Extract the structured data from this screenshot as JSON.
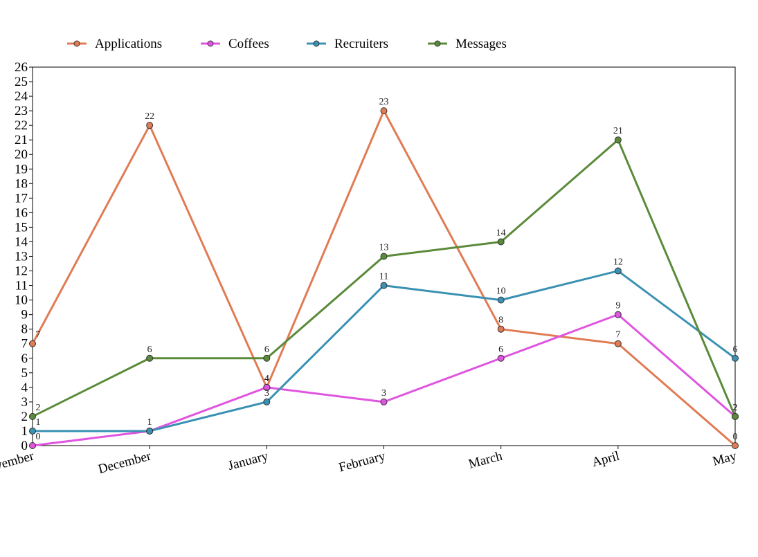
{
  "chart_data": {
    "type": "line",
    "categories": [
      "November",
      "December",
      "January",
      "February",
      "March",
      "April",
      "May"
    ],
    "ylim": [
      0,
      26
    ],
    "yticks": [
      0,
      1,
      2,
      3,
      4,
      5,
      6,
      7,
      8,
      9,
      10,
      11,
      12,
      13,
      14,
      15,
      16,
      17,
      18,
      19,
      20,
      21,
      22,
      23,
      24,
      25,
      26
    ],
    "grid": false,
    "legend_position": "top",
    "series": [
      {
        "name": "Applications",
        "color": "#e07b54",
        "values": [
          7,
          22,
          4,
          23,
          8,
          7,
          0
        ]
      },
      {
        "name": "Coffees",
        "color": "#e055e0",
        "values": [
          0,
          1,
          4,
          3,
          6,
          9,
          2
        ]
      },
      {
        "name": "Recruiters",
        "color": "#3a91b3",
        "values": [
          1,
          1,
          3,
          11,
          10,
          12,
          6
        ]
      },
      {
        "name": "Messages",
        "color": "#5a8a3a",
        "values": [
          2,
          6,
          6,
          13,
          14,
          21,
          2
        ]
      }
    ]
  }
}
